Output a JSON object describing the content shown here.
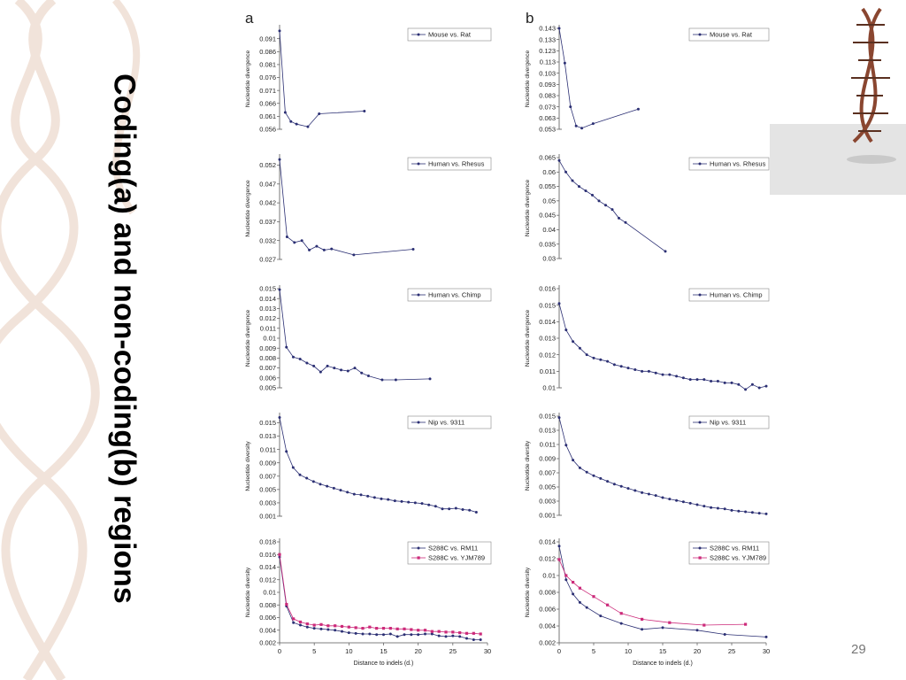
{
  "slide": {
    "title": "Coding(a) and non-coding(b) regions",
    "page_number": "29"
  },
  "colors": {
    "series1": "#2b2f73",
    "series2": "#cc2a7a",
    "axis": "#555555"
  },
  "panel_labels": [
    "a",
    "b"
  ],
  "chart_data": [
    {
      "id": "a1",
      "type": "line",
      "ylabel": "Nucleotide divergence",
      "yticks": [
        0.056,
        0.061,
        0.066,
        0.071,
        0.076,
        0.081,
        0.086,
        0.091
      ],
      "ylim": [
        0.056,
        0.095
      ],
      "xlim": [
        0,
        18
      ],
      "series": [
        {
          "name": "Mouse vs. Rat",
          "x": [
            0,
            1,
            2,
            3,
            5,
            7,
            15
          ],
          "y": [
            0.094,
            0.0625,
            0.059,
            0.058,
            0.057,
            0.062,
            0.063
          ]
        }
      ]
    },
    {
      "id": "b1",
      "type": "line",
      "ylabel": "Nucleotide divergence",
      "yticks": [
        0.053,
        0.063,
        0.073,
        0.083,
        0.093,
        0.103,
        0.113,
        0.123,
        0.133,
        0.143
      ],
      "ylim": [
        0.053,
        0.143
      ],
      "xlim": [
        0,
        18
      ],
      "series": [
        {
          "name": "Mouse vs. Rat",
          "x": [
            0,
            1,
            2,
            3,
            4,
            6,
            14
          ],
          "y": [
            0.143,
            0.112,
            0.073,
            0.056,
            0.054,
            0.058,
            0.071
          ]
        }
      ]
    },
    {
      "id": "a2",
      "type": "line",
      "ylabel": "Nucleotide divergence",
      "yticks": [
        0.027,
        0.032,
        0.037,
        0.042,
        0.047,
        0.052
      ],
      "ylim": [
        0.027,
        0.054
      ],
      "xlim": [
        0,
        18
      ],
      "series": [
        {
          "name": "Human vs. Rhesus",
          "x": [
            0,
            1,
            2,
            3,
            4,
            5,
            6,
            7,
            10,
            18
          ],
          "y": [
            0.0535,
            0.033,
            0.0315,
            0.032,
            0.0295,
            0.0305,
            0.0295,
            0.0298,
            0.0282,
            0.0297
          ]
        }
      ]
    },
    {
      "id": "b2",
      "type": "line",
      "ylabel": "Nucleotide divergence",
      "yticks": [
        0.03,
        0.035,
        0.04,
        0.045,
        0.05,
        0.055,
        0.06,
        0.065
      ],
      "ylim": [
        0.03,
        0.065
      ],
      "xlim": [
        0,
        18
      ],
      "series": [
        {
          "name": "Human vs. Rhesus",
          "x": [
            0,
            1,
            2,
            3,
            4,
            5,
            6,
            7,
            8,
            9,
            10,
            16
          ],
          "y": [
            0.064,
            0.06,
            0.057,
            0.055,
            0.0535,
            0.052,
            0.05,
            0.0485,
            0.047,
            0.044,
            0.0425,
            0.0325
          ]
        }
      ]
    },
    {
      "id": "a3",
      "type": "line",
      "ylabel": "Nucleotide divergence",
      "yticks": [
        0.005,
        0.006,
        0.007,
        0.008,
        0.009,
        0.01,
        0.011,
        0.012,
        0.013,
        0.014,
        0.015
      ],
      "ylim": [
        0.005,
        0.015
      ],
      "xlim": [
        0,
        22
      ],
      "series": [
        {
          "name": "Human vs. Chimp",
          "x": [
            0,
            1,
            2,
            3,
            4,
            5,
            6,
            7,
            8,
            9,
            10,
            11,
            12,
            13,
            15,
            17,
            22
          ],
          "y": [
            0.0149,
            0.0091,
            0.0081,
            0.0079,
            0.0075,
            0.0072,
            0.0066,
            0.0072,
            0.007,
            0.0068,
            0.0067,
            0.007,
            0.0065,
            0.0062,
            0.0058,
            0.0058,
            0.0059
          ]
        }
      ]
    },
    {
      "id": "b3",
      "type": "line",
      "ylabel": "Nucleotide divergence",
      "yticks": [
        0.01,
        0.011,
        0.012,
        0.013,
        0.014,
        0.015,
        0.016
      ],
      "ylim": [
        0.01,
        0.016
      ],
      "xlim": [
        0,
        30
      ],
      "series": [
        {
          "name": "Human vs. Chimp",
          "x": [
            0,
            1,
            2,
            3,
            4,
            5,
            6,
            7,
            8,
            9,
            10,
            11,
            12,
            13,
            14,
            15,
            16,
            17,
            18,
            19,
            20,
            21,
            22,
            23,
            24,
            25,
            26,
            27,
            28,
            29,
            30
          ],
          "y": [
            0.0151,
            0.0135,
            0.0128,
            0.0124,
            0.012,
            0.0118,
            0.0117,
            0.0116,
            0.0114,
            0.0113,
            0.0112,
            0.0111,
            0.011,
            0.011,
            0.0109,
            0.0108,
            0.0108,
            0.0107,
            0.0106,
            0.0105,
            0.0105,
            0.0105,
            0.0104,
            0.0104,
            0.0103,
            0.0103,
            0.0102,
            0.0099,
            0.0102,
            0.01,
            0.0101
          ]
        }
      ]
    },
    {
      "id": "a4",
      "type": "line",
      "ylabel": "Nucleotide diversity",
      "yticks": [
        0.001,
        0.003,
        0.005,
        0.007,
        0.009,
        0.011,
        0.013,
        0.015
      ],
      "ylim": [
        0.001,
        0.016
      ],
      "xlim": [
        0,
        30
      ],
      "series": [
        {
          "name": "Nip vs. 9311",
          "x": [
            0,
            1,
            2,
            3,
            4,
            5,
            6,
            7,
            8,
            9,
            10,
            11,
            12,
            13,
            14,
            15,
            16,
            17,
            18,
            19,
            20,
            21,
            22,
            23,
            24,
            25,
            26,
            27,
            28,
            29
          ],
          "y": [
            0.0158,
            0.0107,
            0.0083,
            0.0072,
            0.0067,
            0.0062,
            0.0058,
            0.0055,
            0.0052,
            0.0049,
            0.0046,
            0.0043,
            0.0042,
            0.004,
            0.0038,
            0.0036,
            0.0035,
            0.0033,
            0.0032,
            0.0031,
            0.003,
            0.0029,
            0.0027,
            0.0025,
            0.0021,
            0.0021,
            0.0022,
            0.002,
            0.0019,
            0.0016
          ]
        }
      ]
    },
    {
      "id": "b4",
      "type": "line",
      "ylabel": "Nucleotide diversity",
      "yticks": [
        0.001,
        0.003,
        0.005,
        0.007,
        0.009,
        0.011,
        0.013,
        0.015
      ],
      "ylim": [
        0.001,
        0.015
      ],
      "xlim": [
        0,
        30
      ],
      "series": [
        {
          "name": "Nip vs. 9311",
          "x": [
            0,
            1,
            2,
            3,
            4,
            5,
            6,
            7,
            8,
            9,
            10,
            11,
            12,
            13,
            14,
            15,
            16,
            17,
            18,
            19,
            20,
            21,
            22,
            23,
            24,
            25,
            26,
            27,
            28,
            29,
            30
          ],
          "y": [
            0.0148,
            0.0109,
            0.0088,
            0.0077,
            0.0071,
            0.0066,
            0.0062,
            0.0058,
            0.0054,
            0.0051,
            0.0048,
            0.0045,
            0.0042,
            0.004,
            0.0038,
            0.0035,
            0.0033,
            0.0031,
            0.0029,
            0.0027,
            0.0025,
            0.0023,
            0.0021,
            0.002,
            0.0019,
            0.0017,
            0.0016,
            0.0015,
            0.0014,
            0.0013,
            0.0012
          ]
        }
      ]
    },
    {
      "id": "a5",
      "type": "line",
      "ylabel": "Nucleotide diversity",
      "xlabel": "Distance to indels (d.)",
      "xticks": [
        0,
        5,
        10,
        15,
        20,
        25,
        30
      ],
      "yticks": [
        0.002,
        0.004,
        0.006,
        0.008,
        0.01,
        0.012,
        0.014,
        0.016,
        0.018
      ],
      "ylim": [
        0.002,
        0.018
      ],
      "xlim": [
        0,
        30
      ],
      "series": [
        {
          "name": "S288C vs. RM11",
          "x": [
            0,
            1,
            2,
            3,
            4,
            5,
            6,
            7,
            8,
            9,
            10,
            11,
            12,
            13,
            14,
            15,
            16,
            17,
            18,
            19,
            20,
            21,
            22,
            23,
            24,
            25,
            26,
            27,
            28,
            29
          ],
          "y": [
            0.0156,
            0.0078,
            0.0052,
            0.0048,
            0.0045,
            0.0043,
            0.0042,
            0.0041,
            0.004,
            0.0038,
            0.0036,
            0.0035,
            0.0034,
            0.0034,
            0.0033,
            0.0033,
            0.0034,
            0.003,
            0.0033,
            0.0033,
            0.0033,
            0.0034,
            0.0034,
            0.0031,
            0.003,
            0.0031,
            0.003,
            0.0027,
            0.0025,
            0.0025
          ]
        },
        {
          "name": "S288C vs. YJM789",
          "x": [
            0,
            1,
            2,
            3,
            4,
            5,
            6,
            7,
            8,
            9,
            10,
            11,
            12,
            13,
            14,
            15,
            16,
            17,
            18,
            19,
            20,
            21,
            22,
            23,
            24,
            25,
            26,
            27,
            28,
            29
          ],
          "y": [
            0.016,
            0.0081,
            0.0058,
            0.0053,
            0.005,
            0.0048,
            0.0049,
            0.0047,
            0.0047,
            0.0046,
            0.0045,
            0.0044,
            0.0043,
            0.0045,
            0.0043,
            0.0043,
            0.0043,
            0.0042,
            0.0042,
            0.0041,
            0.004,
            0.004,
            0.0038,
            0.0038,
            0.0037,
            0.0037,
            0.0036,
            0.0035,
            0.0035,
            0.0034
          ]
        }
      ]
    },
    {
      "id": "b5",
      "type": "line",
      "ylabel": "Nucleotide diversity",
      "xlabel": "Distance to indels (d.)",
      "xticks": [
        0,
        5,
        10,
        15,
        20,
        25,
        30
      ],
      "yticks": [
        0.002,
        0.004,
        0.006,
        0.008,
        0.01,
        0.012,
        0.014
      ],
      "ylim": [
        0.002,
        0.014
      ],
      "xlim": [
        0,
        30
      ],
      "series": [
        {
          "name": "S288C vs. RM11",
          "x": [
            0,
            1,
            2,
            3,
            4,
            6,
            9,
            12,
            15,
            20,
            24,
            30
          ],
          "y": [
            0.0135,
            0.0095,
            0.0078,
            0.0068,
            0.0062,
            0.0052,
            0.0043,
            0.0036,
            0.0038,
            0.0035,
            0.003,
            0.0027
          ]
        },
        {
          "name": "S288C vs. YJM789",
          "x": [
            0,
            1,
            2,
            3,
            5,
            7,
            9,
            12,
            16,
            21,
            27
          ],
          "y": [
            0.0119,
            0.01,
            0.0092,
            0.0085,
            0.0075,
            0.0065,
            0.0055,
            0.0048,
            0.0044,
            0.0041,
            0.0042
          ]
        }
      ]
    }
  ]
}
